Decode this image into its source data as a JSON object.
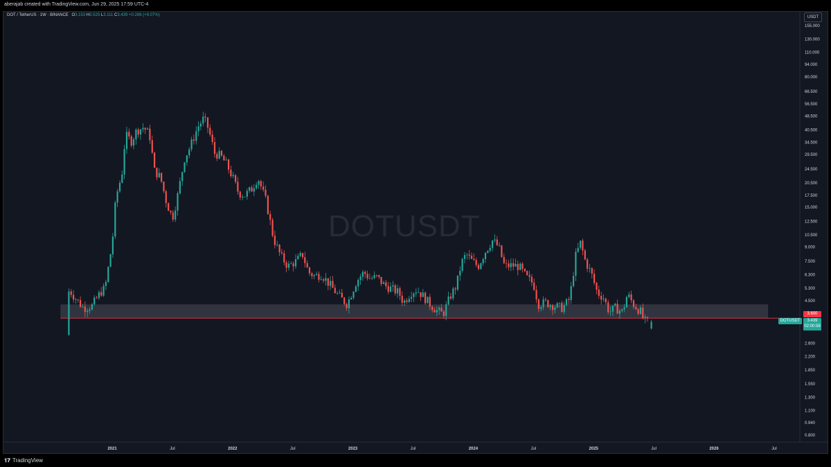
{
  "header": {
    "attribution": "aberajab created with TradingView.com, Jun 29, 2025 17:59 UTC-4"
  },
  "legend": {
    "symbol_line": "DOT / TetherUS · 1W · BINANCE",
    "open_label": "O",
    "open": "3.153",
    "high_label": "H",
    "high": "3.525",
    "low_label": "L",
    "low": "3.111",
    "close_label": "C",
    "close": "3.439",
    "change": "+0.286 (+9.07%)"
  },
  "watermark": "DOTUSDT",
  "currency": "USDT",
  "tags": {
    "level": "3.600",
    "symbol": "DOTUSDT",
    "price": "3.439",
    "countdown": "02:00:58"
  },
  "footer": {
    "logo_mark": "𝟏𝟕",
    "logo_text": "TradingView"
  },
  "colors": {
    "up": "#26a69a",
    "down": "#ef5350",
    "background": "#131722",
    "zone": "#4a4d57",
    "level_line": "#f23645"
  },
  "chart_data": {
    "type": "candlestick",
    "scale": "log",
    "title": "DOT / TetherUS · 1W · BINANCE",
    "y_ticks": [
      "155.000",
      "130.000",
      "110.000",
      "94.000",
      "80.000",
      "66.500",
      "56.500",
      "48.500",
      "40.500",
      "34.500",
      "29.500",
      "24.500",
      "20.500",
      "17.500",
      "15.000",
      "12.500",
      "10.500",
      "9.000",
      "7.500",
      "6.300",
      "5.300",
      "4.500",
      "3.800",
      "3.200",
      "2.600",
      "2.200",
      "1.850",
      "1.550",
      "1.300",
      "1.100",
      "0.940",
      "0.800"
    ],
    "y_tick_values": [
      155,
      130,
      110,
      94,
      80,
      66.5,
      56.5,
      48.5,
      40.5,
      34.5,
      29.5,
      24.5,
      20.5,
      17.5,
      15,
      12.5,
      10.5,
      9,
      7.5,
      6.3,
      5.3,
      4.5,
      3.8,
      3.2,
      2.6,
      2.2,
      1.85,
      1.55,
      1.3,
      1.1,
      0.94,
      0.8
    ],
    "x_ticks": [
      {
        "label": "2021",
        "t": 2021.0,
        "year": true
      },
      {
        "label": "Jul",
        "t": 2021.5,
        "year": false
      },
      {
        "label": "2022",
        "t": 2022.0,
        "year": true
      },
      {
        "label": "Jul",
        "t": 2022.5,
        "year": false
      },
      {
        "label": "2023",
        "t": 2023.0,
        "year": true
      },
      {
        "label": "Jul",
        "t": 2023.5,
        "year": false
      },
      {
        "label": "2024",
        "t": 2024.0,
        "year": true
      },
      {
        "label": "Jul",
        "t": 2024.5,
        "year": false
      },
      {
        "label": "2025",
        "t": 2025.0,
        "year": true
      },
      {
        "label": "Jul",
        "t": 2025.5,
        "year": false
      },
      {
        "label": "2026",
        "t": 2026.0,
        "year": true
      },
      {
        "label": "Jul",
        "t": 2026.5,
        "year": false
      }
    ],
    "support_zone": {
      "low": 3.6,
      "high": 4.3,
      "t_start": 2020.57,
      "t_end": 2026.45
    },
    "level_line": {
      "value": 3.6,
      "t_start": 2020.57
    },
    "anchor_points": [
      [
        2020.64,
        2.9
      ],
      [
        2020.66,
        5.2
      ],
      [
        2020.72,
        4.6
      ],
      [
        2020.78,
        4.1
      ],
      [
        2020.85,
        4.2
      ],
      [
        2020.92,
        5.0
      ],
      [
        2020.96,
        5.3
      ],
      [
        2021.02,
        9.5
      ],
      [
        2021.05,
        17.0
      ],
      [
        2021.1,
        23.0
      ],
      [
        2021.13,
        38.0
      ],
      [
        2021.18,
        35.0
      ],
      [
        2021.22,
        40.0
      ],
      [
        2021.28,
        42.0
      ],
      [
        2021.33,
        38.0
      ],
      [
        2021.37,
        24.0
      ],
      [
        2021.42,
        22.0
      ],
      [
        2021.47,
        16.0
      ],
      [
        2021.52,
        13.0
      ],
      [
        2021.56,
        17.0
      ],
      [
        2021.62,
        28.0
      ],
      [
        2021.67,
        33.0
      ],
      [
        2021.73,
        42.0
      ],
      [
        2021.78,
        47.0
      ],
      [
        2021.82,
        41.0
      ],
      [
        2021.87,
        30.0
      ],
      [
        2021.92,
        29.0
      ],
      [
        2021.97,
        26.0
      ],
      [
        2022.02,
        22.0
      ],
      [
        2022.07,
        18.0
      ],
      [
        2022.12,
        17.5
      ],
      [
        2022.18,
        19.0
      ],
      [
        2022.23,
        22.0
      ],
      [
        2022.3,
        16.0
      ],
      [
        2022.36,
        10.0
      ],
      [
        2022.42,
        8.0
      ],
      [
        2022.48,
        7.0
      ],
      [
        2022.55,
        7.5
      ],
      [
        2022.6,
        8.2
      ],
      [
        2022.65,
        6.5
      ],
      [
        2022.7,
        6.2
      ],
      [
        2022.76,
        6.3
      ],
      [
        2022.83,
        5.5
      ],
      [
        2022.9,
        4.8
      ],
      [
        2022.97,
        4.3
      ],
      [
        2023.05,
        5.8
      ],
      [
        2023.11,
        6.5
      ],
      [
        2023.16,
        6.0
      ],
      [
        2023.22,
        6.1
      ],
      [
        2023.28,
        5.5
      ],
      [
        2023.35,
        5.2
      ],
      [
        2023.4,
        5.0
      ],
      [
        2023.44,
        4.4
      ],
      [
        2023.5,
        5.0
      ],
      [
        2023.55,
        5.2
      ],
      [
        2023.6,
        4.8
      ],
      [
        2023.66,
        4.3
      ],
      [
        2023.72,
        3.95
      ],
      [
        2023.77,
        3.8
      ],
      [
        2023.83,
        4.8
      ],
      [
        2023.88,
        5.5
      ],
      [
        2023.92,
        7.3
      ],
      [
        2023.96,
        8.2
      ],
      [
        2024.0,
        7.6
      ],
      [
        2024.06,
        7.0
      ],
      [
        2024.12,
        8.5
      ],
      [
        2024.18,
        9.8
      ],
      [
        2024.23,
        9.0
      ],
      [
        2024.28,
        7.0
      ],
      [
        2024.34,
        7.1
      ],
      [
        2024.4,
        7.0
      ],
      [
        2024.46,
        6.1
      ],
      [
        2024.52,
        5.6
      ],
      [
        2024.56,
        4.3
      ],
      [
        2024.62,
        4.4
      ],
      [
        2024.7,
        4.2
      ],
      [
        2024.76,
        4.1
      ],
      [
        2024.82,
        4.6
      ],
      [
        2024.87,
        8.0
      ],
      [
        2024.91,
        9.5
      ],
      [
        2024.95,
        7.5
      ],
      [
        2025.0,
        6.4
      ],
      [
        2025.05,
        5.0
      ],
      [
        2025.1,
        4.7
      ],
      [
        2025.15,
        3.9
      ],
      [
        2025.2,
        4.1
      ],
      [
        2025.26,
        3.9
      ],
      [
        2025.3,
        4.9
      ],
      [
        2025.35,
        4.3
      ],
      [
        2025.41,
        3.9
      ],
      [
        2025.44,
        3.45
      ],
      [
        2025.48,
        3.44
      ]
    ],
    "last_candle": {
      "open": 3.153,
      "high": 3.525,
      "low": 3.111,
      "close": 3.439
    }
  }
}
